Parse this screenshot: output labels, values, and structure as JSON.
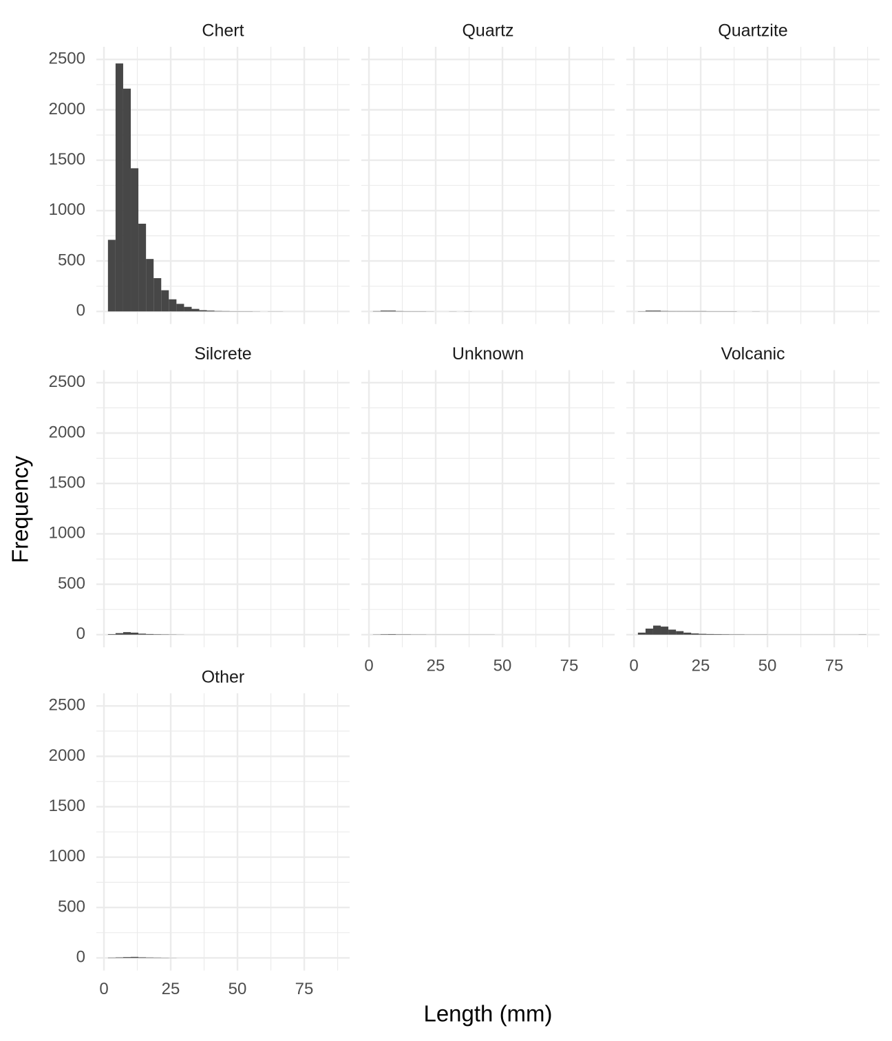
{
  "chart_data": {
    "type": "histogram",
    "xlabel": "Length (mm)",
    "ylabel": "Frequency",
    "color": "#474747",
    "grid": true,
    "xlim": [
      -2.84,
      92
    ],
    "ylim": [
      -125,
      2625
    ],
    "xticks": [
      0,
      25,
      50,
      75
    ],
    "xminorticks": [
      12.5,
      37.5,
      62.5,
      87.5
    ],
    "yticks": [
      0,
      500,
      1000,
      1500,
      2000,
      2500
    ],
    "yminorticks": [
      250,
      750,
      1250,
      1750,
      2250
    ],
    "bins": [
      1.5,
      4.35,
      7.2,
      10.05,
      12.9,
      15.75,
      18.6,
      21.45,
      24.3,
      27.15,
      30,
      32.85,
      35.7,
      38.55,
      41.4,
      44.25,
      47.1,
      49.95,
      52.8,
      55.65,
      58.5,
      61.35,
      64.2,
      67.05,
      69.9,
      72.75,
      75.6,
      78.45,
      81.3,
      84.15,
      87
    ],
    "facets": [
      {
        "title": "Chert",
        "values": [
          710,
          2460,
          2210,
          1420,
          870,
          520,
          330,
          210,
          120,
          75,
          45,
          25,
          12,
          8,
          4,
          3,
          2,
          2,
          2,
          1,
          0,
          1,
          1,
          0,
          0,
          0,
          0,
          0,
          0,
          0
        ]
      },
      {
        "title": "Quartz",
        "values": [
          3,
          8,
          8,
          3,
          2,
          2,
          2,
          1,
          0,
          0,
          1,
          0,
          1,
          0,
          0,
          0,
          0,
          0,
          0,
          0,
          0,
          0,
          0,
          0,
          0,
          0,
          0,
          0,
          0,
          0
        ]
      },
      {
        "title": "Quartzite",
        "values": [
          2,
          8,
          8,
          4,
          3,
          3,
          3,
          3,
          3,
          2,
          2,
          2,
          2,
          0,
          0,
          1,
          0,
          0,
          0,
          0,
          0,
          0,
          0,
          0,
          0,
          0,
          0,
          0,
          0,
          0
        ]
      },
      {
        "title": "Silcrete",
        "values": [
          5,
          15,
          25,
          20,
          10,
          6,
          4,
          3,
          2,
          1,
          0,
          0,
          0,
          0,
          0,
          0,
          0,
          0,
          0,
          0,
          0,
          0,
          0,
          0,
          0,
          0,
          0,
          0,
          0,
          0
        ]
      },
      {
        "title": "Unknown",
        "values": [
          2,
          4,
          5,
          3,
          3,
          2,
          2,
          1,
          1,
          1,
          1,
          1,
          1,
          1,
          1,
          1,
          0,
          0,
          0,
          0,
          0,
          0,
          0,
          0,
          0,
          0,
          0,
          0,
          0,
          0
        ]
      },
      {
        "title": "Volcanic",
        "values": [
          20,
          60,
          90,
          80,
          50,
          35,
          20,
          12,
          8,
          6,
          5,
          4,
          3,
          3,
          2,
          2,
          2,
          1,
          1,
          1,
          1,
          1,
          1,
          1,
          1,
          1,
          1,
          1,
          1,
          2
        ]
      },
      {
        "title": "Other",
        "values": [
          3,
          5,
          8,
          10,
          6,
          4,
          3,
          2,
          1,
          0,
          0,
          0,
          0,
          0,
          0,
          0,
          0,
          0,
          0,
          0,
          0,
          0,
          0,
          0,
          0,
          0,
          0,
          0,
          0,
          0
        ]
      }
    ]
  }
}
